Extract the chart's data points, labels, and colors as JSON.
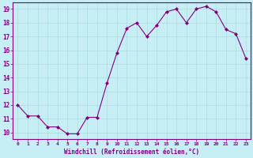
{
  "x": [
    0,
    1,
    2,
    3,
    4,
    5,
    6,
    7,
    8,
    9,
    10,
    11,
    12,
    13,
    14,
    15,
    16,
    17,
    18,
    19,
    20,
    21,
    22,
    23
  ],
  "y": [
    12.0,
    11.2,
    11.2,
    10.4,
    10.4,
    9.9,
    9.9,
    11.1,
    11.1,
    13.6,
    15.8,
    17.6,
    18.0,
    17.0,
    17.8,
    18.8,
    19.0,
    18.0,
    19.0,
    19.2,
    18.8,
    17.5,
    17.2,
    15.4
  ],
  "line_color": "#800080",
  "marker": "D",
  "marker_size": 2,
  "bg_color": "#c8eef5",
  "grid_color": "#aadddd",
  "xlabel": "Windchill (Refroidissement éolien,°C)",
  "ylabel_ticks": [
    10,
    11,
    12,
    13,
    14,
    15,
    16,
    17,
    18,
    19
  ],
  "xlim": [
    -0.5,
    23.5
  ],
  "ylim": [
    9.5,
    19.5
  ],
  "xtick_labels": [
    "0",
    "1",
    "2",
    "3",
    "4",
    "5",
    "6",
    "7",
    "8",
    "9",
    "10",
    "11",
    "12",
    "13",
    "14",
    "15",
    "16",
    "17",
    "18",
    "19",
    "20",
    "21",
    "22",
    "23"
  ],
  "tick_color": "#800080",
  "label_color": "#800080",
  "spine_color": "#800080"
}
